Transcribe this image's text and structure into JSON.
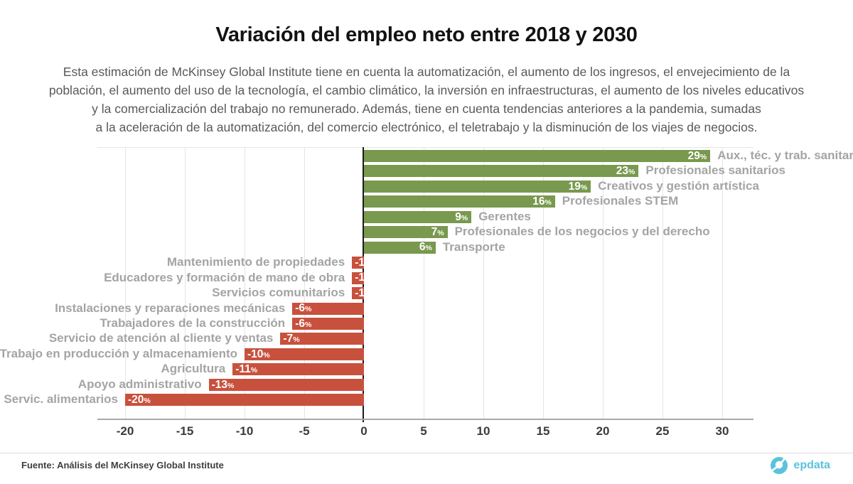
{
  "title": "Variación del empleo neto entre 2018 y 2030",
  "subtitle": "Esta estimación de McKinsey Global Institute tiene en cuenta la automatización, el aumento de los ingresos, el envejecimiento de la\npoblación, el aumento del uso de la tecnología, el cambio climático, la inversión en infraestructuras, el aumento de los niveles educativos\ny la comercialización del trabajo no remunerado. Además, tiene en cuenta tendencias anteriores a la pandemia, sumadas\na la aceleración de la automatización, del comercio electrónico, el teletrabajo y la disminución de los viajes de negocios.",
  "chart_data": {
    "type": "bar",
    "orientation": "horizontal",
    "title": "Variación del empleo neto entre 2018 y 2030",
    "categories": [
      "Aux., téc. y trab. sanitarios",
      "Profesionales sanitarios",
      "Creativos y gestión artística",
      "Profesionales STEM",
      "Gerentes",
      "Profesionales de los negocios y del derecho",
      "Transporte",
      "Mantenimiento de propiedades",
      "Educadores y formación de mano de obra",
      "Servicios comunitarios",
      "Instalaciones y reparaciones mecánicas",
      "Trabajadores de la construcción",
      "Servicio de atención al cliente y ventas",
      "Trabajo en producción y almacenamiento",
      "Agricultura",
      "Apoyo administrativo",
      "Servic. alimentarios"
    ],
    "values": [
      29,
      23,
      19,
      16,
      9,
      7,
      6,
      -1,
      -1,
      -1,
      -6,
      -6,
      -7,
      -10,
      -11,
      -13,
      -20
    ],
    "value_suffix": "%",
    "xlim": [
      -20,
      30
    ],
    "xticks": [
      -20,
      -15,
      -10,
      -5,
      0,
      5,
      10,
      15,
      20,
      25,
      30
    ],
    "grid": true,
    "positive_color": "#78994e",
    "negative_color": "#c8513d",
    "category_label_color": "#a4a4a4",
    "value_label_color": "#ffffff"
  },
  "footer": {
    "source": "Fuente: Análisis del McKinsey Global Institute",
    "brand": "epdata",
    "brand_color": "#5ac3dc"
  }
}
